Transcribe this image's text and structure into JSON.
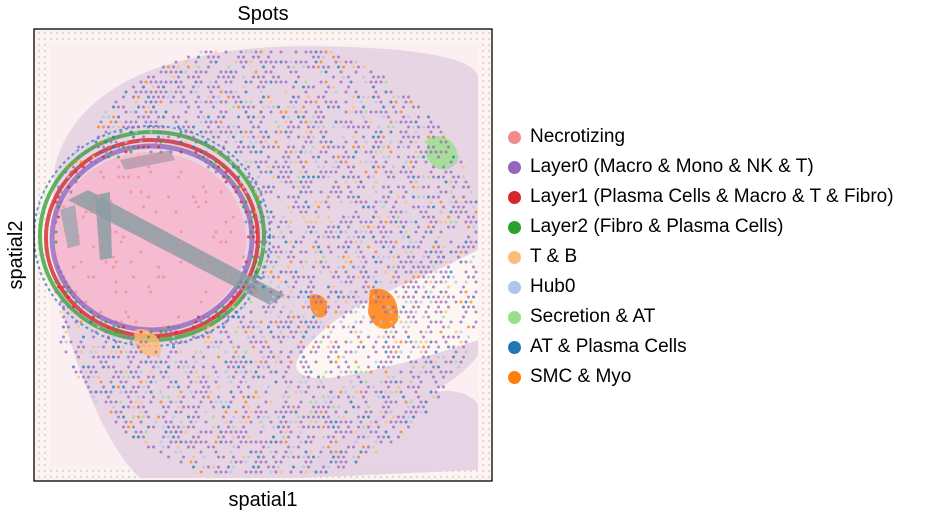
{
  "chart_data": {
    "type": "scatter",
    "title": "Spots",
    "xlabel": "spatial1",
    "ylabel": "spatial2",
    "grid": false,
    "legend_placement": "right",
    "categories": [
      {
        "name": "Necrotizing",
        "color": "#f08c8c"
      },
      {
        "name": "Layer0 (Macro & Mono & NK & T)",
        "color": "#9467bd"
      },
      {
        "name": "Layer1 (Plasma Cells & Macro & T & Fibro)",
        "color": "#d62728"
      },
      {
        "name": "Layer2 (Fibro & Plasma Cells)",
        "color": "#2ca02c"
      },
      {
        "name": "T & B",
        "color": "#ffbb78"
      },
      {
        "name": "Hub0",
        "color": "#aec7e8"
      },
      {
        "name": "Secretion & AT",
        "color": "#98df8a"
      },
      {
        "name": "AT & Plasma Cells",
        "color": "#1f77b4"
      },
      {
        "name": "SMC & Myo",
        "color": "#ff7f0e"
      }
    ]
  }
}
